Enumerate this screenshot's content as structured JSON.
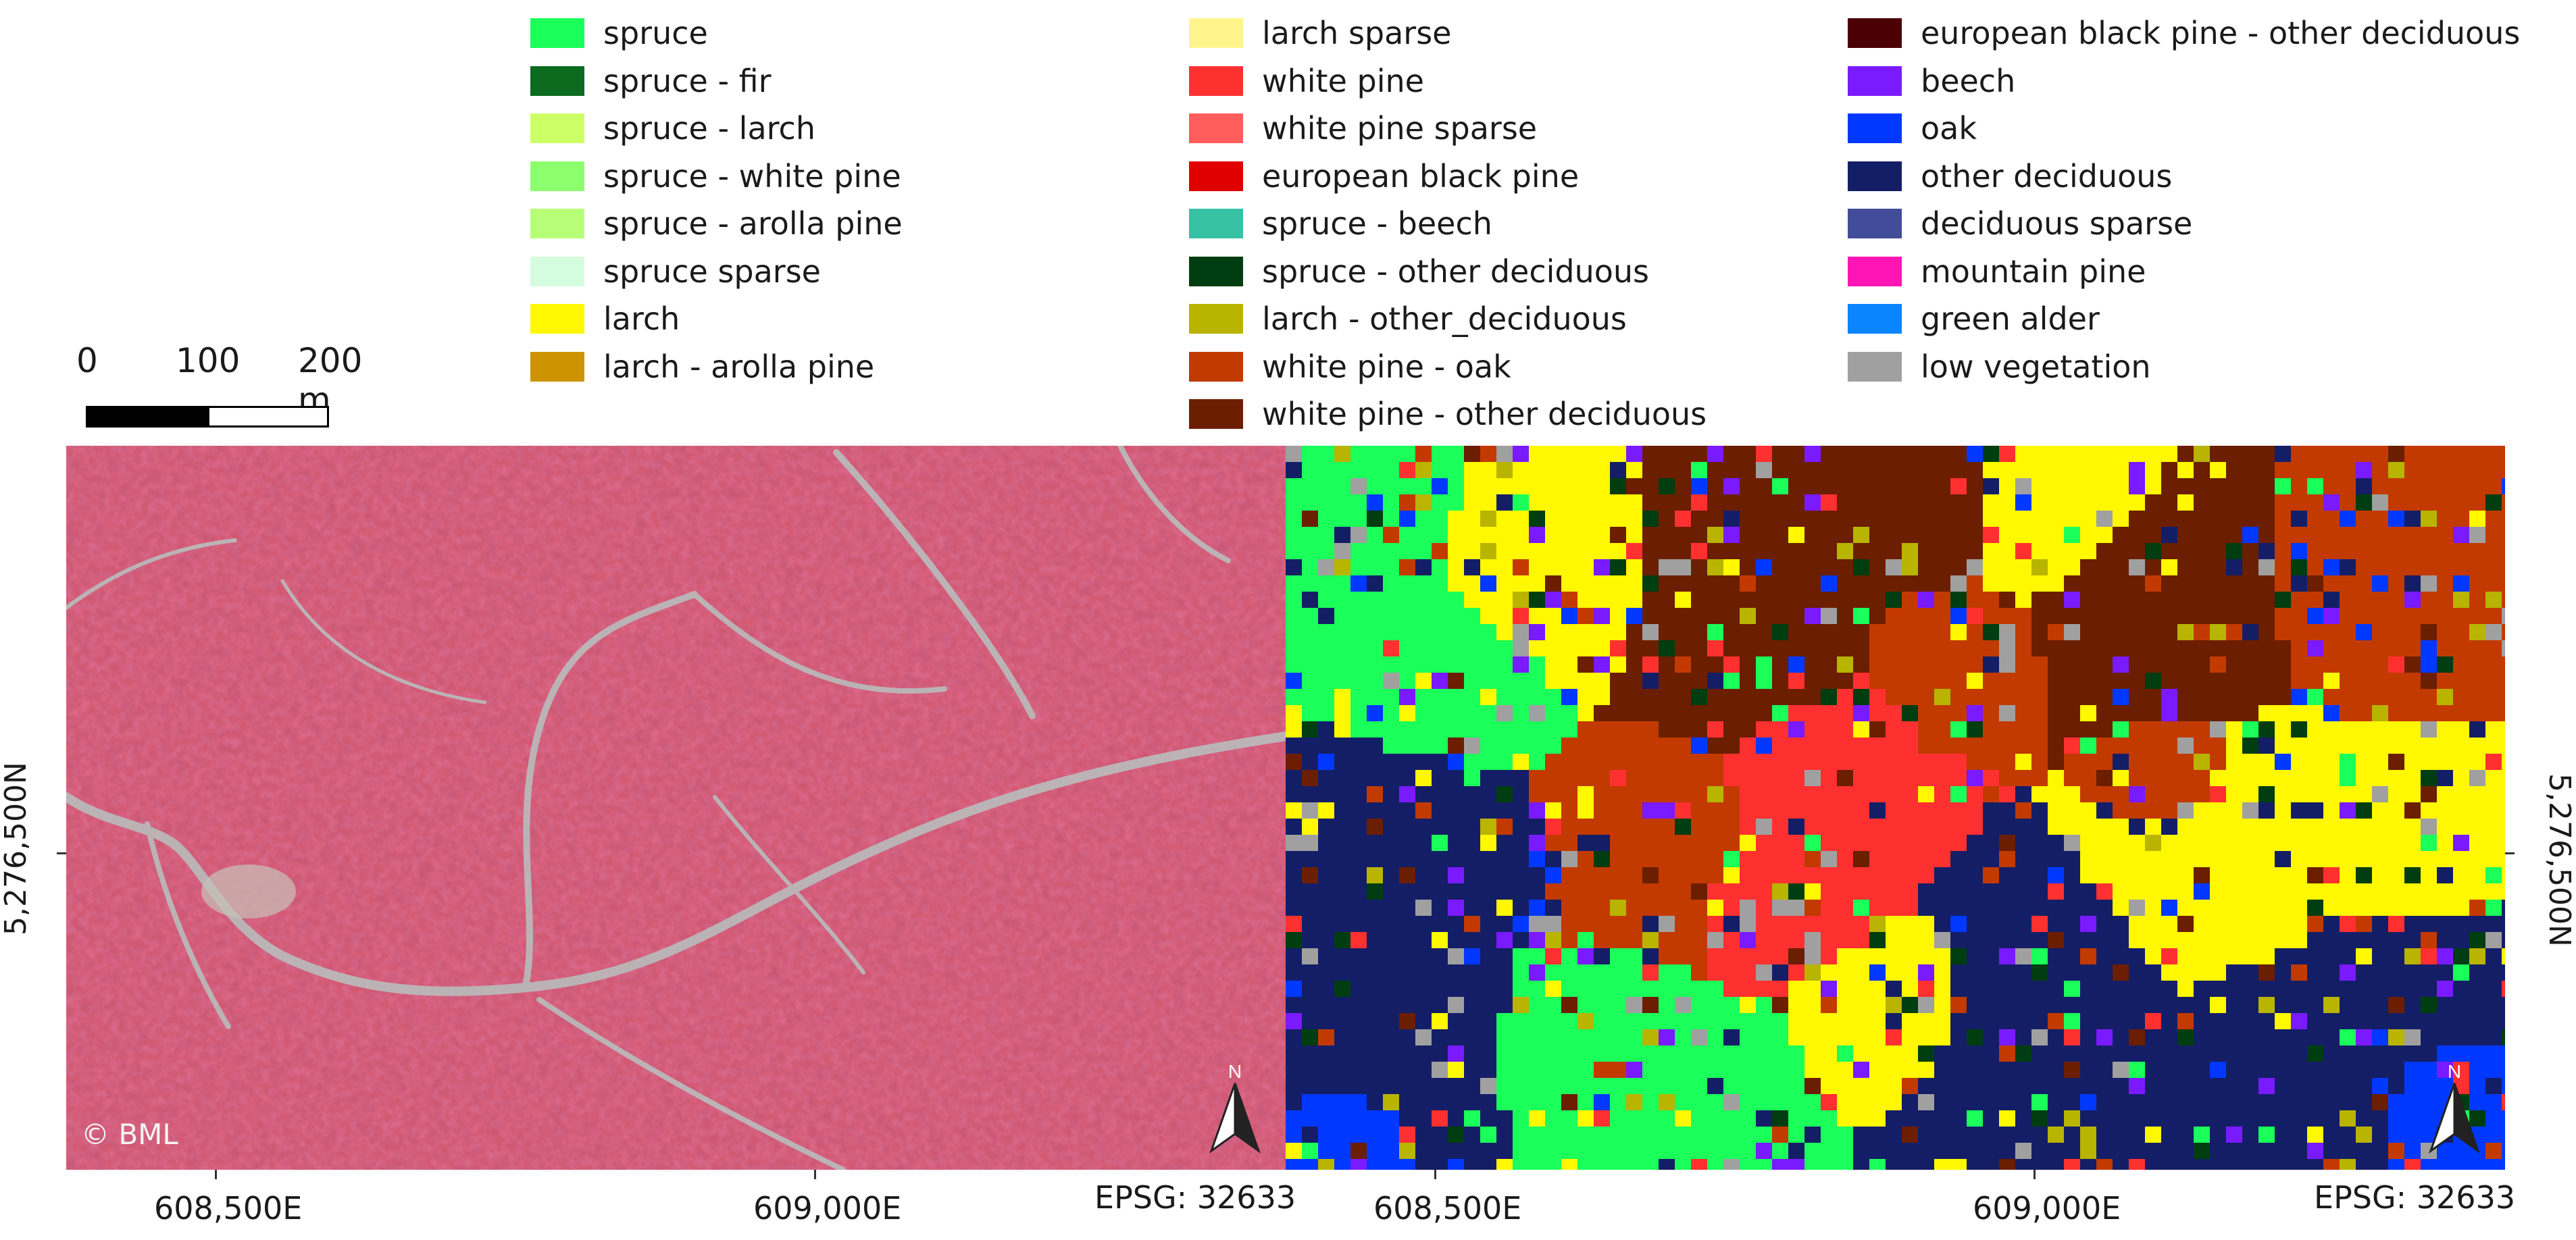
{
  "legend": {
    "columns": [
      [
        {
          "label": "spruce",
          "color": "#1aff5a"
        },
        {
          "label": "spruce - fir",
          "color": "#0d6b1f"
        },
        {
          "label": "spruce - larch",
          "color": "#ccff66"
        },
        {
          "label": "spruce - white pine",
          "color": "#8cff6e"
        },
        {
          "label": "spruce - arolla pine",
          "color": "#b8ff78"
        },
        {
          "label": "spruce sparse",
          "color": "#d4fde0"
        },
        {
          "label": "larch",
          "color": "#fff800"
        },
        {
          "label": "larch - arolla pine",
          "color": "#cc9400"
        }
      ],
      [
        {
          "label": "larch sparse",
          "color": "#fff58c"
        },
        {
          "label": "white pine",
          "color": "#ff3030"
        },
        {
          "label": "white pine sparse",
          "color": "#ff5c5c"
        },
        {
          "label": "european black pine",
          "color": "#e00000"
        },
        {
          "label": "spruce - beech",
          "color": "#38c2a4"
        },
        {
          "label": "spruce - other deciduous",
          "color": "#003d10"
        },
        {
          "label": "larch - other_deciduous",
          "color": "#b8b400"
        },
        {
          "label": "white pine - oak",
          "color": "#c23a00"
        },
        {
          "label": "white pine - other deciduous",
          "color": "#6b1e00"
        }
      ],
      [
        {
          "label": "european black pine - other deciduous",
          "color": "#4a0005"
        },
        {
          "label": "beech",
          "color": "#7a1aff"
        },
        {
          "label": "oak",
          "color": "#0038ff"
        },
        {
          "label": "other deciduous",
          "color": "#141e66"
        },
        {
          "label": "deciduous sparse",
          "color": "#424c99"
        },
        {
          "label": "mountain pine",
          "color": "#ff14b4"
        },
        {
          "label": "green alder",
          "color": "#0a84ff"
        },
        {
          "label": "low vegetation",
          "color": "#a0a0a0"
        }
      ]
    ]
  },
  "scalebar": {
    "labels": [
      "0",
      "100",
      "200 m"
    ]
  },
  "panels": [
    {
      "id": "aerial",
      "x_ticks": [
        "608,500E",
        "609,000E"
      ],
      "epsg": "EPSG: 32633",
      "y_tick": "5,276,500N",
      "north_label": "N",
      "copyright": "© BML"
    },
    {
      "id": "classification",
      "x_ticks": [
        "608,500E",
        "609,000E"
      ],
      "epsg": "EPSG: 32633",
      "y_tick": "5,276,500N",
      "north_label": "N"
    }
  ]
}
